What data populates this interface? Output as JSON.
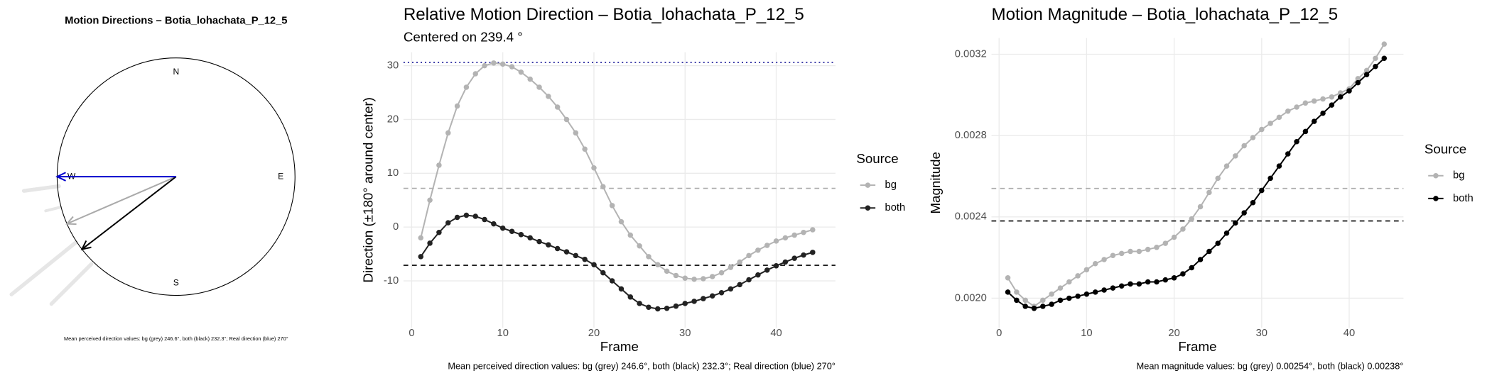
{
  "chart_data": [
    {
      "type": "compass",
      "title": "Motion Directions – Botia_lohachata_P_12_5",
      "caption": "Mean perceived direction values: bg (grey) 246.6°, both (black) 232.3°; Real direction (blue) 270°",
      "direction_labels": [
        "N",
        "E",
        "S",
        "W"
      ],
      "values": [
        246.6,
        232.3,
        270
      ],
      "colors": [
        "#aaaaaa",
        "#000000",
        "#0000cc"
      ]
    },
    {
      "type": "line",
      "title": "Relative Motion Direction – Botia_lohachata_P_12_5",
      "subtitle": "Centered on  239.4 °",
      "x_label": "Frame",
      "y_label": "Direction (±180° around center)",
      "caption": "Mean perceived direction values: bg (grey) 246.6°, both (black) 232.3°; Real direction (blue) 270°",
      "legend_title": "Source",
      "x": [
        1,
        2,
        3,
        4,
        5,
        6,
        7,
        8,
        9,
        10,
        11,
        12,
        13,
        14,
        15,
        16,
        17,
        18,
        19,
        20,
        21,
        22,
        23,
        24,
        25,
        26,
        27,
        28,
        29,
        30,
        31,
        32,
        33,
        34,
        35,
        36,
        37,
        38,
        39,
        40,
        41,
        42,
        43,
        44
      ],
      "series": [
        {
          "name": "bg",
          "color": "#b3b3b3",
          "values": [
            -2,
            5,
            11.5,
            17.5,
            22.5,
            26,
            28.5,
            30,
            30.5,
            30.3,
            29.8,
            28.8,
            27.5,
            26,
            24.3,
            22.3,
            20,
            17.5,
            14.5,
            11,
            7.5,
            4,
            1,
            -1.5,
            -3.5,
            -5.5,
            -7,
            -8.2,
            -9,
            -9.5,
            -9.7,
            -9.6,
            -9.2,
            -8.5,
            -7.5,
            -6.5,
            -5.3,
            -4.3,
            -3.4,
            -2.6,
            -2,
            -1.5,
            -1,
            -0.5
          ]
        },
        {
          "name": "both",
          "color": "#222222",
          "values": [
            -5.5,
            -3,
            -1,
            0.8,
            1.8,
            2.2,
            2,
            1.4,
            0.6,
            -0.2,
            -0.8,
            -1.4,
            -2,
            -2.7,
            -3.3,
            -4,
            -4.6,
            -5.3,
            -6,
            -7,
            -8.5,
            -10,
            -11.5,
            -13,
            -14.2,
            -14.9,
            -15.2,
            -15.1,
            -14.7,
            -14.2,
            -13.8,
            -13.3,
            -12.8,
            -12.2,
            -11.5,
            -10.7,
            -9.8,
            -8.9,
            -8,
            -7.2,
            -6.5,
            -5.8,
            -5.2,
            -4.7
          ]
        }
      ],
      "hlines": [
        {
          "value": 30.6,
          "color": "#1a1a99",
          "dash": "dotted"
        },
        {
          "value": 7.2,
          "color": "#aaaaaa",
          "dash": "dashed"
        },
        {
          "value": -7.1,
          "color": "#000000",
          "dash": "dashed"
        }
      ],
      "xlim": [
        -0.9,
        46.5
      ],
      "xticks": [
        0,
        10,
        20,
        30,
        40
      ],
      "ylim": [
        -18.7,
        32.5
      ],
      "yticks": [
        -10,
        0,
        10,
        20,
        30
      ],
      "grid": true
    },
    {
      "type": "line",
      "title": "Motion Magnitude – Botia_lohachata_P_12_5",
      "x_label": "Frame",
      "y_label": "Magnitude",
      "caption": "Mean magnitude values: bg (grey) 0.00254°, both (black) 0.00238°",
      "legend_title": "Source",
      "x": [
        1,
        2,
        3,
        4,
        5,
        6,
        7,
        8,
        9,
        10,
        11,
        12,
        13,
        14,
        15,
        16,
        17,
        18,
        19,
        20,
        21,
        22,
        23,
        24,
        25,
        26,
        27,
        28,
        29,
        30,
        31,
        32,
        33,
        34,
        35,
        36,
        37,
        38,
        39,
        40,
        41,
        42,
        43,
        44
      ],
      "series": [
        {
          "name": "bg",
          "color": "#b3b3b3",
          "values": [
            0.0021,
            0.00203,
            0.00199,
            0.00196,
            0.00199,
            0.00202,
            0.00205,
            0.00208,
            0.00211,
            0.00214,
            0.00217,
            0.00219,
            0.00221,
            0.00222,
            0.00223,
            0.00223,
            0.00224,
            0.00225,
            0.00227,
            0.0023,
            0.00234,
            0.00239,
            0.00245,
            0.00252,
            0.00259,
            0.00265,
            0.0027,
            0.00275,
            0.00279,
            0.00283,
            0.00286,
            0.00289,
            0.00292,
            0.00294,
            0.00296,
            0.00297,
            0.00298,
            0.00299,
            0.00301,
            0.00303,
            0.00308,
            0.00312,
            0.00318,
            0.00325
          ]
        },
        {
          "name": "both",
          "color": "#000000",
          "values": [
            0.00203,
            0.00199,
            0.00196,
            0.00195,
            0.00196,
            0.00197,
            0.00199,
            0.002,
            0.00201,
            0.00202,
            0.00203,
            0.00204,
            0.00205,
            0.00206,
            0.00207,
            0.00207,
            0.00208,
            0.00208,
            0.00209,
            0.0021,
            0.00212,
            0.00215,
            0.00219,
            0.00223,
            0.00227,
            0.00232,
            0.00237,
            0.00242,
            0.00247,
            0.00253,
            0.00259,
            0.00265,
            0.00271,
            0.00277,
            0.00282,
            0.00287,
            0.00291,
            0.00295,
            0.00299,
            0.00302,
            0.00306,
            0.0031,
            0.00314,
            0.00318
          ]
        }
      ],
      "hlines": [
        {
          "value": 0.00254,
          "color": "#aaaaaa",
          "dash": "dashed"
        },
        {
          "value": 0.00238,
          "color": "#000000",
          "dash": "dashed"
        }
      ],
      "xlim": [
        -0.87,
        46.2
      ],
      "xticks": [
        0,
        10,
        20,
        30,
        40
      ],
      "ylim": [
        0.001855,
        0.00328
      ],
      "yticks": [
        {
          "value": 0.002,
          "label": "0.0020"
        },
        {
          "value": 0.0024,
          "label": "0.0024"
        },
        {
          "value": 0.0028,
          "label": "0.0028"
        },
        {
          "value": 0.0032,
          "label": "0.0032"
        }
      ],
      "grid": true
    }
  ]
}
